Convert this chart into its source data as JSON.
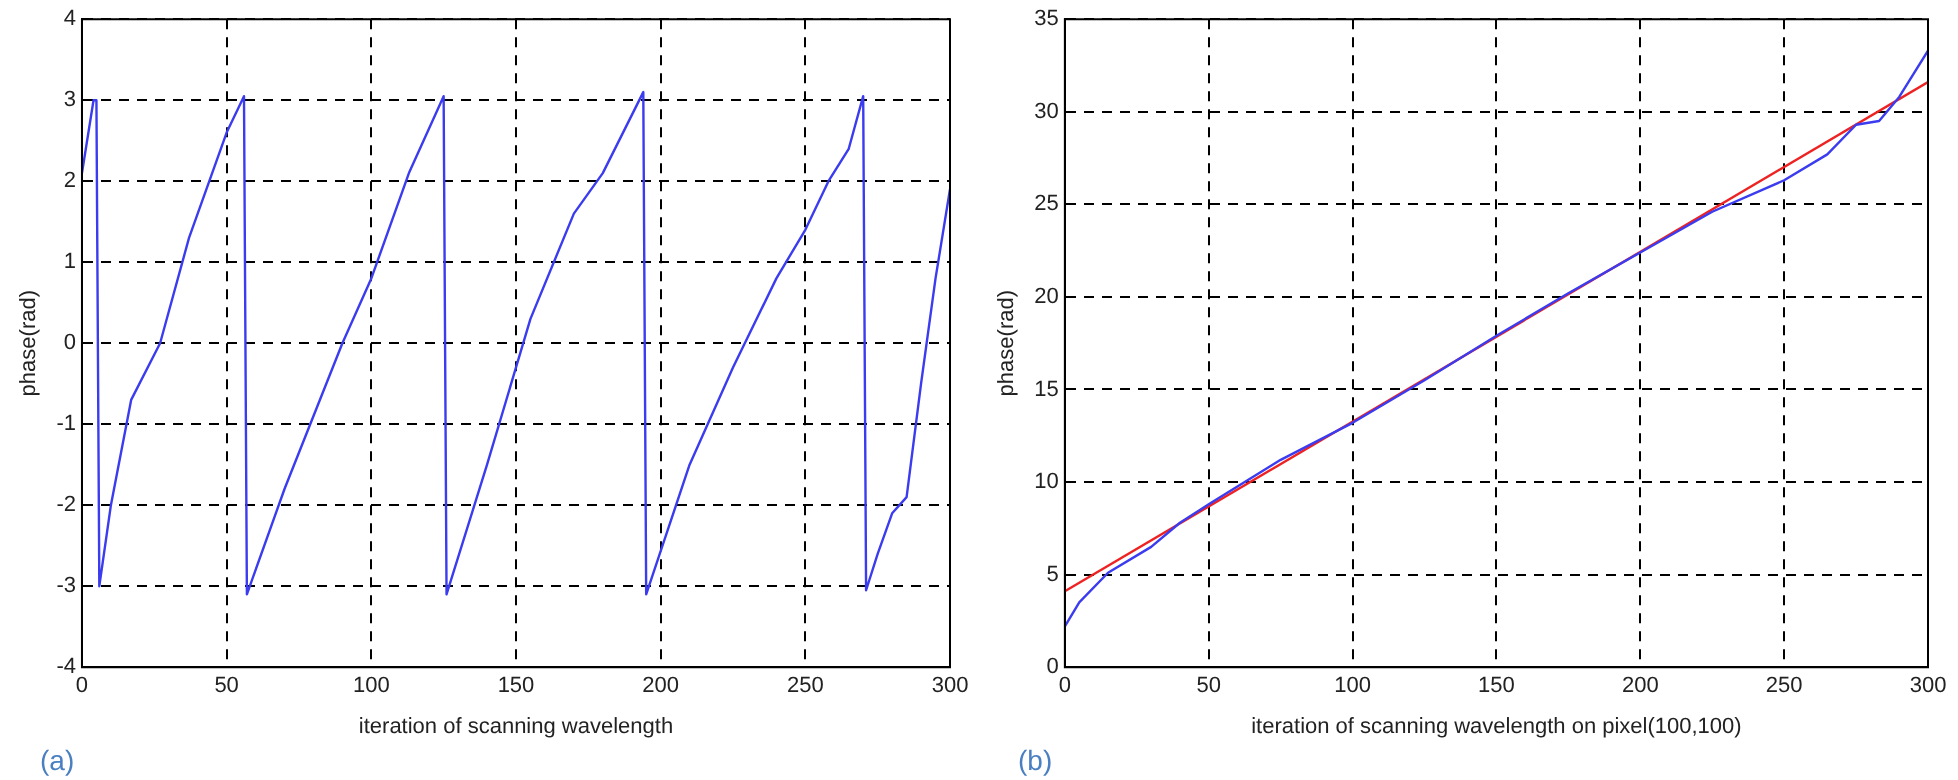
{
  "chart_data": [
    {
      "type": "line",
      "xlabel": "iteration of scanning wavelength",
      "ylabel": "phase(rad)",
      "annotations": [
        "(a)"
      ],
      "xlim": [
        0,
        300
      ],
      "xticks": [
        0,
        50,
        100,
        150,
        200,
        250,
        300
      ],
      "ylim": [
        -4,
        4
      ],
      "yticks": [
        -4,
        -3,
        -2,
        -1,
        0,
        1,
        2,
        3,
        4
      ],
      "grid": true,
      "line_style": "solid",
      "series": [
        {
          "color": "#3b3bf0",
          "x": [
            0,
            4,
            5,
            6,
            10,
            17,
            27,
            37,
            50,
            56,
            57,
            70,
            90,
            100,
            113,
            125,
            126,
            140,
            155,
            170,
            180,
            194,
            195,
            210,
            225,
            240,
            250,
            258,
            265,
            270,
            271,
            275,
            280,
            285,
            290,
            295,
            300
          ],
          "values": [
            2.1,
            3.0,
            3.0,
            -3.0,
            -2.0,
            -0.7,
            0,
            1.3,
            2.6,
            3.05,
            -3.1,
            -1.8,
            0,
            0.8,
            2.1,
            3.05,
            -3.1,
            -1.5,
            0.3,
            1.6,
            2.1,
            3.1,
            -3.1,
            -1.5,
            -0.3,
            0.8,
            1.4,
            2.0,
            2.4,
            3.05,
            -3.05,
            -2.6,
            -2.1,
            -1.9,
            -0.5,
            0.8,
            1.9
          ]
        }
      ]
    },
    {
      "type": "line",
      "xlabel": "iteration of scanning wavelength on pixel(100,100)",
      "ylabel": "phase(rad)",
      "annotations": [
        "(b)"
      ],
      "xlim": [
        0,
        300
      ],
      "xticks": [
        0,
        50,
        100,
        150,
        200,
        250,
        300
      ],
      "ylim": [
        0,
        35
      ],
      "yticks": [
        0,
        5,
        10,
        15,
        20,
        25,
        30,
        35
      ],
      "grid": true,
      "line_style": "solid",
      "series": [
        {
          "color": "#3b3bf0",
          "x": [
            0,
            5,
            15,
            30,
            40,
            50,
            75,
            100,
            125,
            150,
            175,
            200,
            225,
            250,
            265,
            275,
            283,
            290,
            300
          ],
          "values": [
            2.2,
            3.5,
            5.1,
            6.5,
            7.8,
            8.8,
            11.2,
            13.2,
            15.5,
            17.9,
            20.2,
            22.4,
            24.6,
            26.3,
            27.7,
            29.3,
            29.5,
            30.8,
            33.3
          ]
        },
        {
          "color": "#ee2222",
          "x": [
            0,
            300
          ],
          "values": [
            4.1,
            31.6
          ]
        }
      ]
    }
  ]
}
